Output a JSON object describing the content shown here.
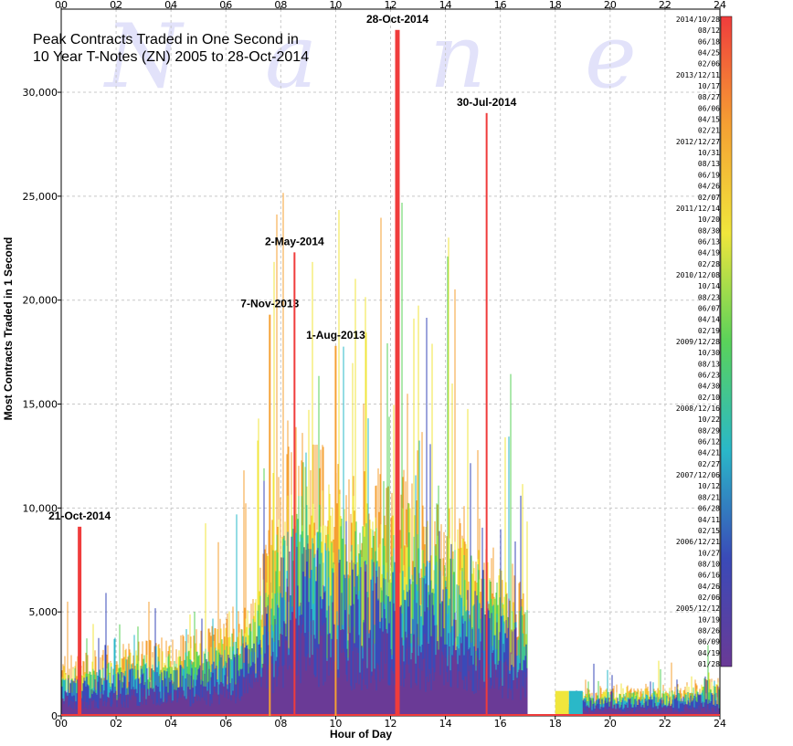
{
  "chart_data": {
    "type": "bar",
    "title_lines": [
      "Peak Contracts Traded in One Second in",
      "10 Year T-Notes (ZN) 2005 to 28-Oct-2014"
    ],
    "xlabel": "Hour of Day",
    "ylabel": "Most Contracts Traded in 1 Second",
    "xlim": [
      0,
      24
    ],
    "ylim": [
      0,
      34000
    ],
    "x_ticks": [
      0,
      2,
      4,
      6,
      8,
      10,
      12,
      14,
      16,
      18,
      20,
      22,
      24
    ],
    "x_tick_labels": [
      "00",
      "02",
      "04",
      "06",
      "08",
      "10",
      "12",
      "14",
      "16",
      "18",
      "20",
      "22",
      "24"
    ],
    "y_ticks": [
      0,
      5000,
      10000,
      15000,
      20000,
      25000,
      30000
    ],
    "y_tick_labels": [
      "0",
      "5,000",
      "10,000",
      "15,000",
      "20,000",
      "25,000",
      "30,000"
    ],
    "grid": true,
    "legend": "right color scale",
    "watermark": [
      "N",
      "a",
      "n",
      "e"
    ],
    "color_scale": {
      "labels": [
        "2014/10/28",
        "08/12",
        "06/18",
        "04/25",
        "02/06",
        "2013/12/11",
        "10/17",
        "08/27",
        "06/06",
        "04/15",
        "02/21",
        "2012/12/27",
        "10/31",
        "08/13",
        "06/19",
        "04/26",
        "02/07",
        "2011/12/14",
        "10/20",
        "08/30",
        "06/13",
        "04/19",
        "02/28",
        "2010/12/08",
        "10/14",
        "08/23",
        "06/07",
        "04/14",
        "02/19",
        "2009/12/28",
        "10/30",
        "08/13",
        "06/23",
        "04/30",
        "02/10",
        "2008/12/16",
        "10/22",
        "08/29",
        "06/12",
        "04/21",
        "02/27",
        "2007/12/06",
        "10/12",
        "08/21",
        "06/28",
        "04/11",
        "02/15",
        "2006/12/21",
        "10/27",
        "08/10",
        "06/16",
        "04/26",
        "02/06",
        "2005/12/12",
        "10/19",
        "08/26",
        "06/09",
        "04/19",
        "01/28"
      ],
      "colors": [
        "#f03c3c",
        "#f5a033",
        "#f0e63c",
        "#5ad25a",
        "#2ab8c8",
        "#3a4ab8",
        "#6a3a96"
      ]
    },
    "gap": [
      17,
      18
    ],
    "peaks": [
      {
        "x": 0.67,
        "y": 9100,
        "label": "21-Oct-2014",
        "color": "#f03c3c"
      },
      {
        "x": 7.6,
        "y": 19300,
        "label": "7-Nov-2013",
        "color": "#f5a033"
      },
      {
        "x": 8.5,
        "y": 22300,
        "label": "2-May-2014",
        "color": "#f03c3c"
      },
      {
        "x": 10.0,
        "y": 17800,
        "label": "1-Aug-2013",
        "color": "#f5a033"
      },
      {
        "x": 12.25,
        "y": 33000,
        "label": "28-Oct-2014",
        "color": "#f03c3c"
      },
      {
        "x": 15.5,
        "y": 29000,
        "label": "30-Jul-2014",
        "color": "#f03c3c"
      }
    ],
    "envelope": {
      "x": [
        0,
        1,
        2,
        3,
        4,
        5,
        6,
        7,
        7.5,
        8,
        8.5,
        9,
        10,
        11,
        12,
        13,
        14,
        15,
        16,
        17,
        18,
        19,
        20,
        21,
        22,
        23,
        24
      ],
      "y": [
        1500,
        1600,
        1900,
        2000,
        2000,
        2200,
        2600,
        3200,
        4500,
        6500,
        7500,
        7000,
        6500,
        6200,
        6300,
        6000,
        5500,
        5200,
        4200,
        3500,
        0,
        700,
        800,
        800,
        800,
        900,
        1000
      ]
    }
  }
}
